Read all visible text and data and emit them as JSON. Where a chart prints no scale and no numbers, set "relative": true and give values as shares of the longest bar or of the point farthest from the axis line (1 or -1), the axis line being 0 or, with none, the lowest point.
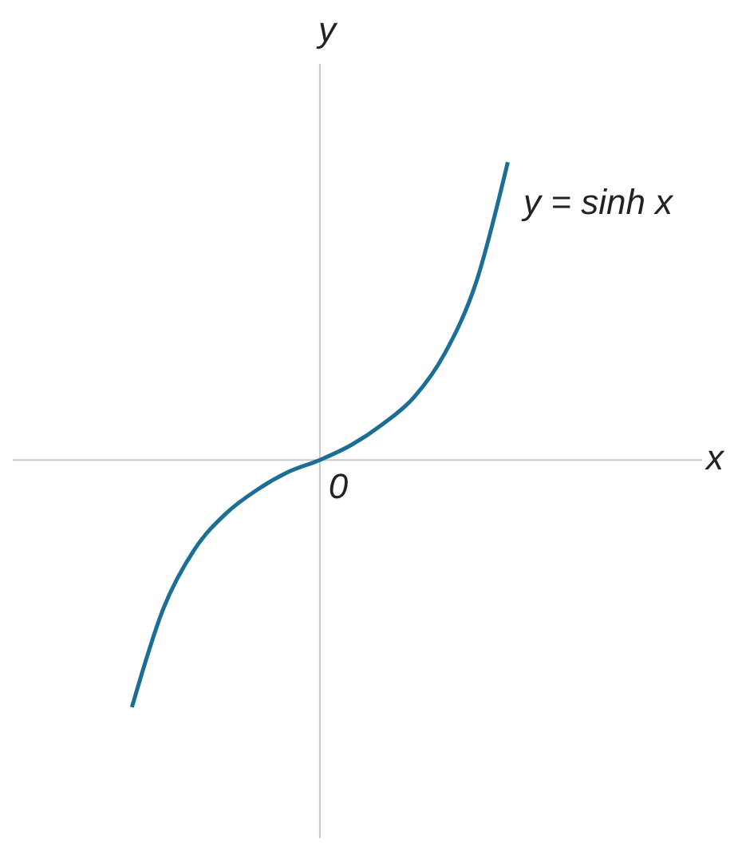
{
  "chart_data": {
    "type": "line",
    "relative": true,
    "ylabel": "y",
    "annotations": [
      "0",
      "x"
    ],
    "categories": [
      null,
      null,
      null,
      null,
      null,
      null,
      null,
      null,
      null,
      null,
      null,
      null,
      null
    ],
    "series": [
      {
        "name": "y = sinh x",
        "color": "#1d6e94",
        "values": [
          -0.83,
          -0.5,
          -0.3,
          -0.18,
          -0.1,
          -0.04,
          0,
          0.05,
          0.12,
          0.21,
          0.36,
          0.6,
          1
        ]
      }
    ],
    "marker": "none",
    "line_style": "solid"
  }
}
